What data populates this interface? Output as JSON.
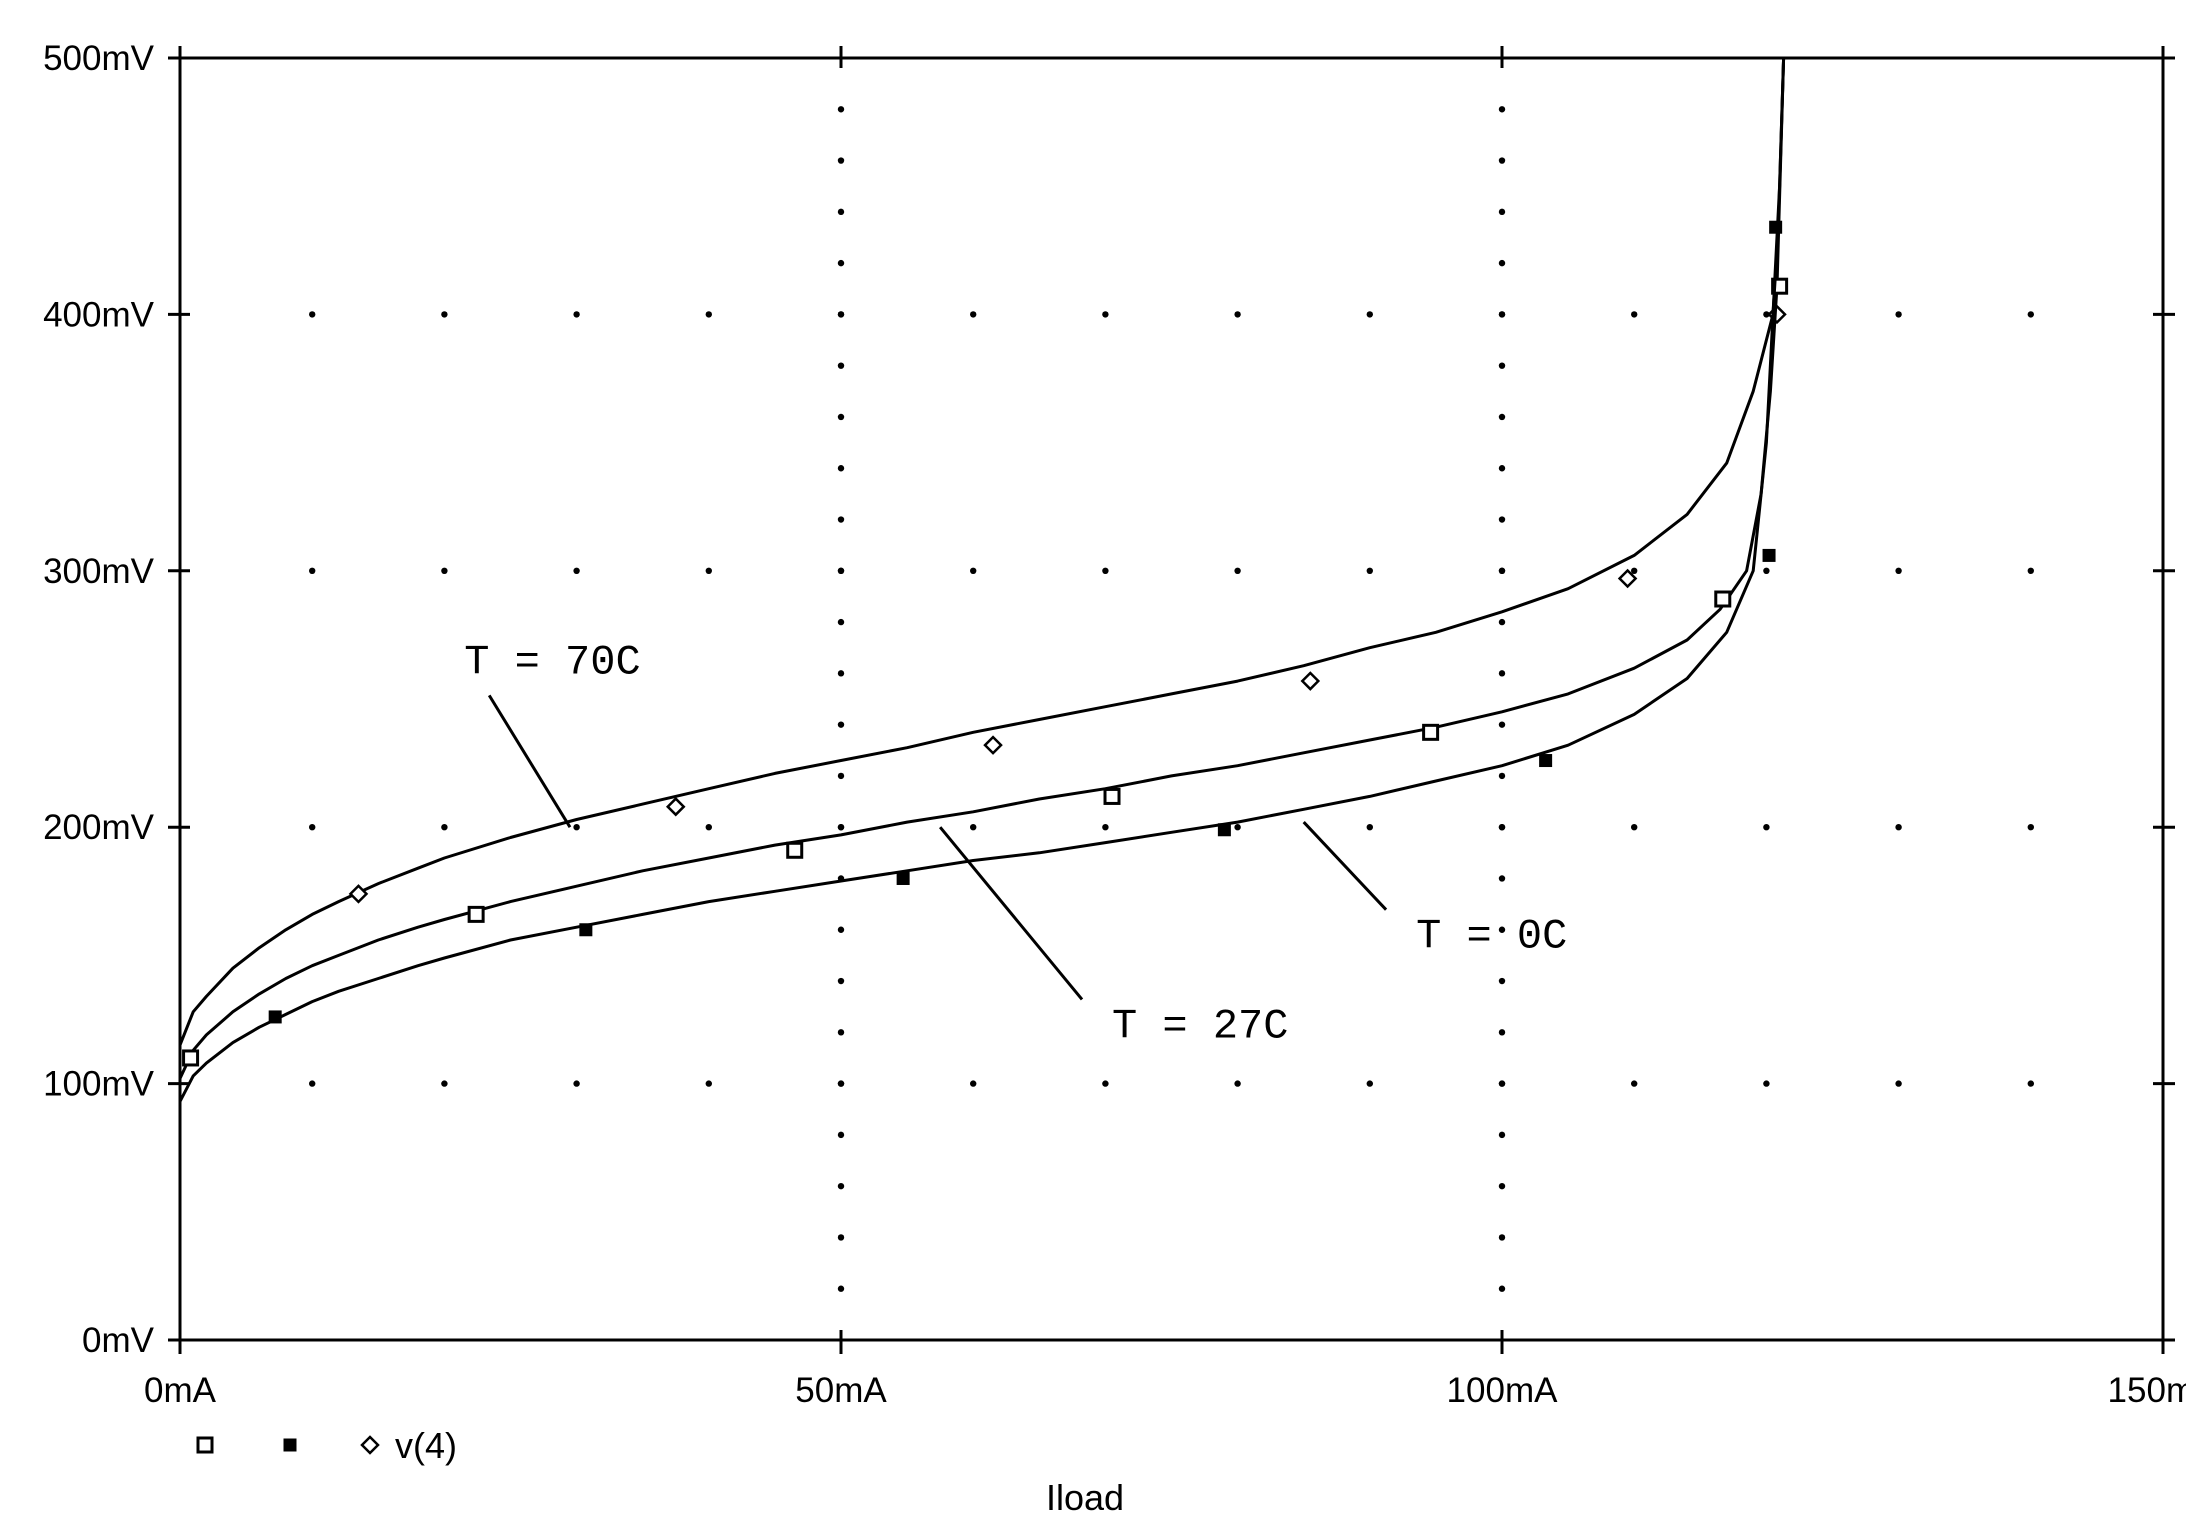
{
  "chart_data": {
    "type": "line",
    "xlabel": "Iload",
    "ylabel": "",
    "x_unit": "mA",
    "y_unit": "mV",
    "xlim": [
      0,
      150
    ],
    "ylim": [
      0,
      500
    ],
    "x_ticks": [
      {
        "value": 0,
        "label": "0mA"
      },
      {
        "value": 50,
        "label": "50mA"
      },
      {
        "value": 100,
        "label": "100mA"
      },
      {
        "value": 150,
        "label": "150mA"
      }
    ],
    "y_ticks": [
      {
        "value": 0,
        "label": "0mV"
      },
      {
        "value": 100,
        "label": "100mV"
      },
      {
        "value": 200,
        "label": "200mV"
      },
      {
        "value": 300,
        "label": "300mV"
      },
      {
        "value": 400,
        "label": "400mV"
      },
      {
        "value": 500,
        "label": "500mV"
      }
    ],
    "grid": "dotted",
    "legend": {
      "placement": "bottom-left",
      "label": "v(4)",
      "markers": [
        "square-open",
        "square-filled",
        "diamond-open"
      ]
    },
    "annotations": [
      {
        "text": "T = 70C",
        "series": "T = 70C",
        "x": 21.5,
        "y": 260,
        "target": [
          29.5,
          200
        ]
      },
      {
        "text": "T = 27C",
        "series": "T = 27C",
        "x": 70.5,
        "y": 118,
        "target": [
          57.5,
          200
        ]
      },
      {
        "text": "T = 0C",
        "series": "T = 0C",
        "x": 93.5,
        "y": 153,
        "target": [
          85,
          202
        ]
      }
    ],
    "series": [
      {
        "name": "T = 70C",
        "marker": "diamond-open",
        "x": [
          0,
          1,
          2,
          4,
          6,
          8,
          10,
          12,
          15,
          18,
          20,
          25,
          30,
          35,
          40,
          45,
          50,
          55,
          60,
          65,
          70,
          75,
          80,
          85,
          90,
          95,
          100,
          105,
          110,
          114,
          117,
          119,
          120,
          120.5,
          121,
          121.3
        ],
        "y": [
          115,
          128,
          134,
          145,
          153,
          160,
          166,
          171,
          178,
          184,
          188,
          196,
          203,
          209,
          215,
          221,
          226,
          231,
          237,
          242,
          247,
          252,
          257,
          263,
          270,
          276,
          284,
          293,
          306,
          322,
          342,
          370,
          390,
          400,
          450,
          500
        ],
        "marker_x": [
          13.5,
          37.5,
          61.5,
          85.5,
          109.5,
          120.8
        ],
        "marker_y": [
          174,
          208,
          232,
          257,
          297,
          400
        ]
      },
      {
        "name": "T = 27C",
        "marker": "square-open",
        "x": [
          0,
          1,
          2,
          4,
          6,
          8,
          10,
          12,
          15,
          18,
          20,
          25,
          30,
          35,
          40,
          45,
          50,
          55,
          60,
          65,
          70,
          75,
          80,
          85,
          90,
          95,
          100,
          105,
          110,
          114,
          116.5,
          118.5,
          119.6,
          120.3,
          120.8,
          121.3
        ],
        "y": [
          102,
          113,
          119,
          128,
          135,
          141,
          146,
          150,
          156,
          161,
          164,
          171,
          177,
          183,
          188,
          193,
          197,
          202,
          206,
          211,
          215,
          220,
          224,
          229,
          234,
          239,
          245,
          252,
          262,
          273,
          285,
          300,
          330,
          370,
          411,
          500
        ],
        "marker_x": [
          0.8,
          22.4,
          46.5,
          70.5,
          94.6,
          116.7,
          121
        ],
        "marker_y": [
          110,
          166,
          191,
          212,
          237,
          289,
          411
        ]
      },
      {
        "name": "T = 0C",
        "marker": "square-filled",
        "x": [
          0,
          1,
          2,
          4,
          6,
          8,
          10,
          12,
          15,
          18,
          20,
          25,
          30,
          35,
          40,
          45,
          50,
          55,
          60,
          65,
          70,
          75,
          80,
          85,
          90,
          95,
          100,
          105,
          110,
          114,
          117,
          119,
          120,
          120.5,
          120.9,
          121.3
        ],
        "y": [
          93,
          103,
          108,
          116,
          122,
          127,
          132,
          136,
          141,
          146,
          149,
          156,
          161,
          166,
          171,
          175,
          179,
          183,
          187,
          190,
          194,
          198,
          202,
          207,
          212,
          218,
          224,
          232,
          244,
          258,
          276,
          300,
          350,
          400,
          434,
          500
        ],
        "marker_x": [
          7.2,
          30.7,
          54.7,
          79,
          103.3,
          120.2,
          120.7
        ],
        "marker_y": [
          126,
          160,
          180,
          199,
          226,
          306,
          434
        ]
      }
    ]
  }
}
